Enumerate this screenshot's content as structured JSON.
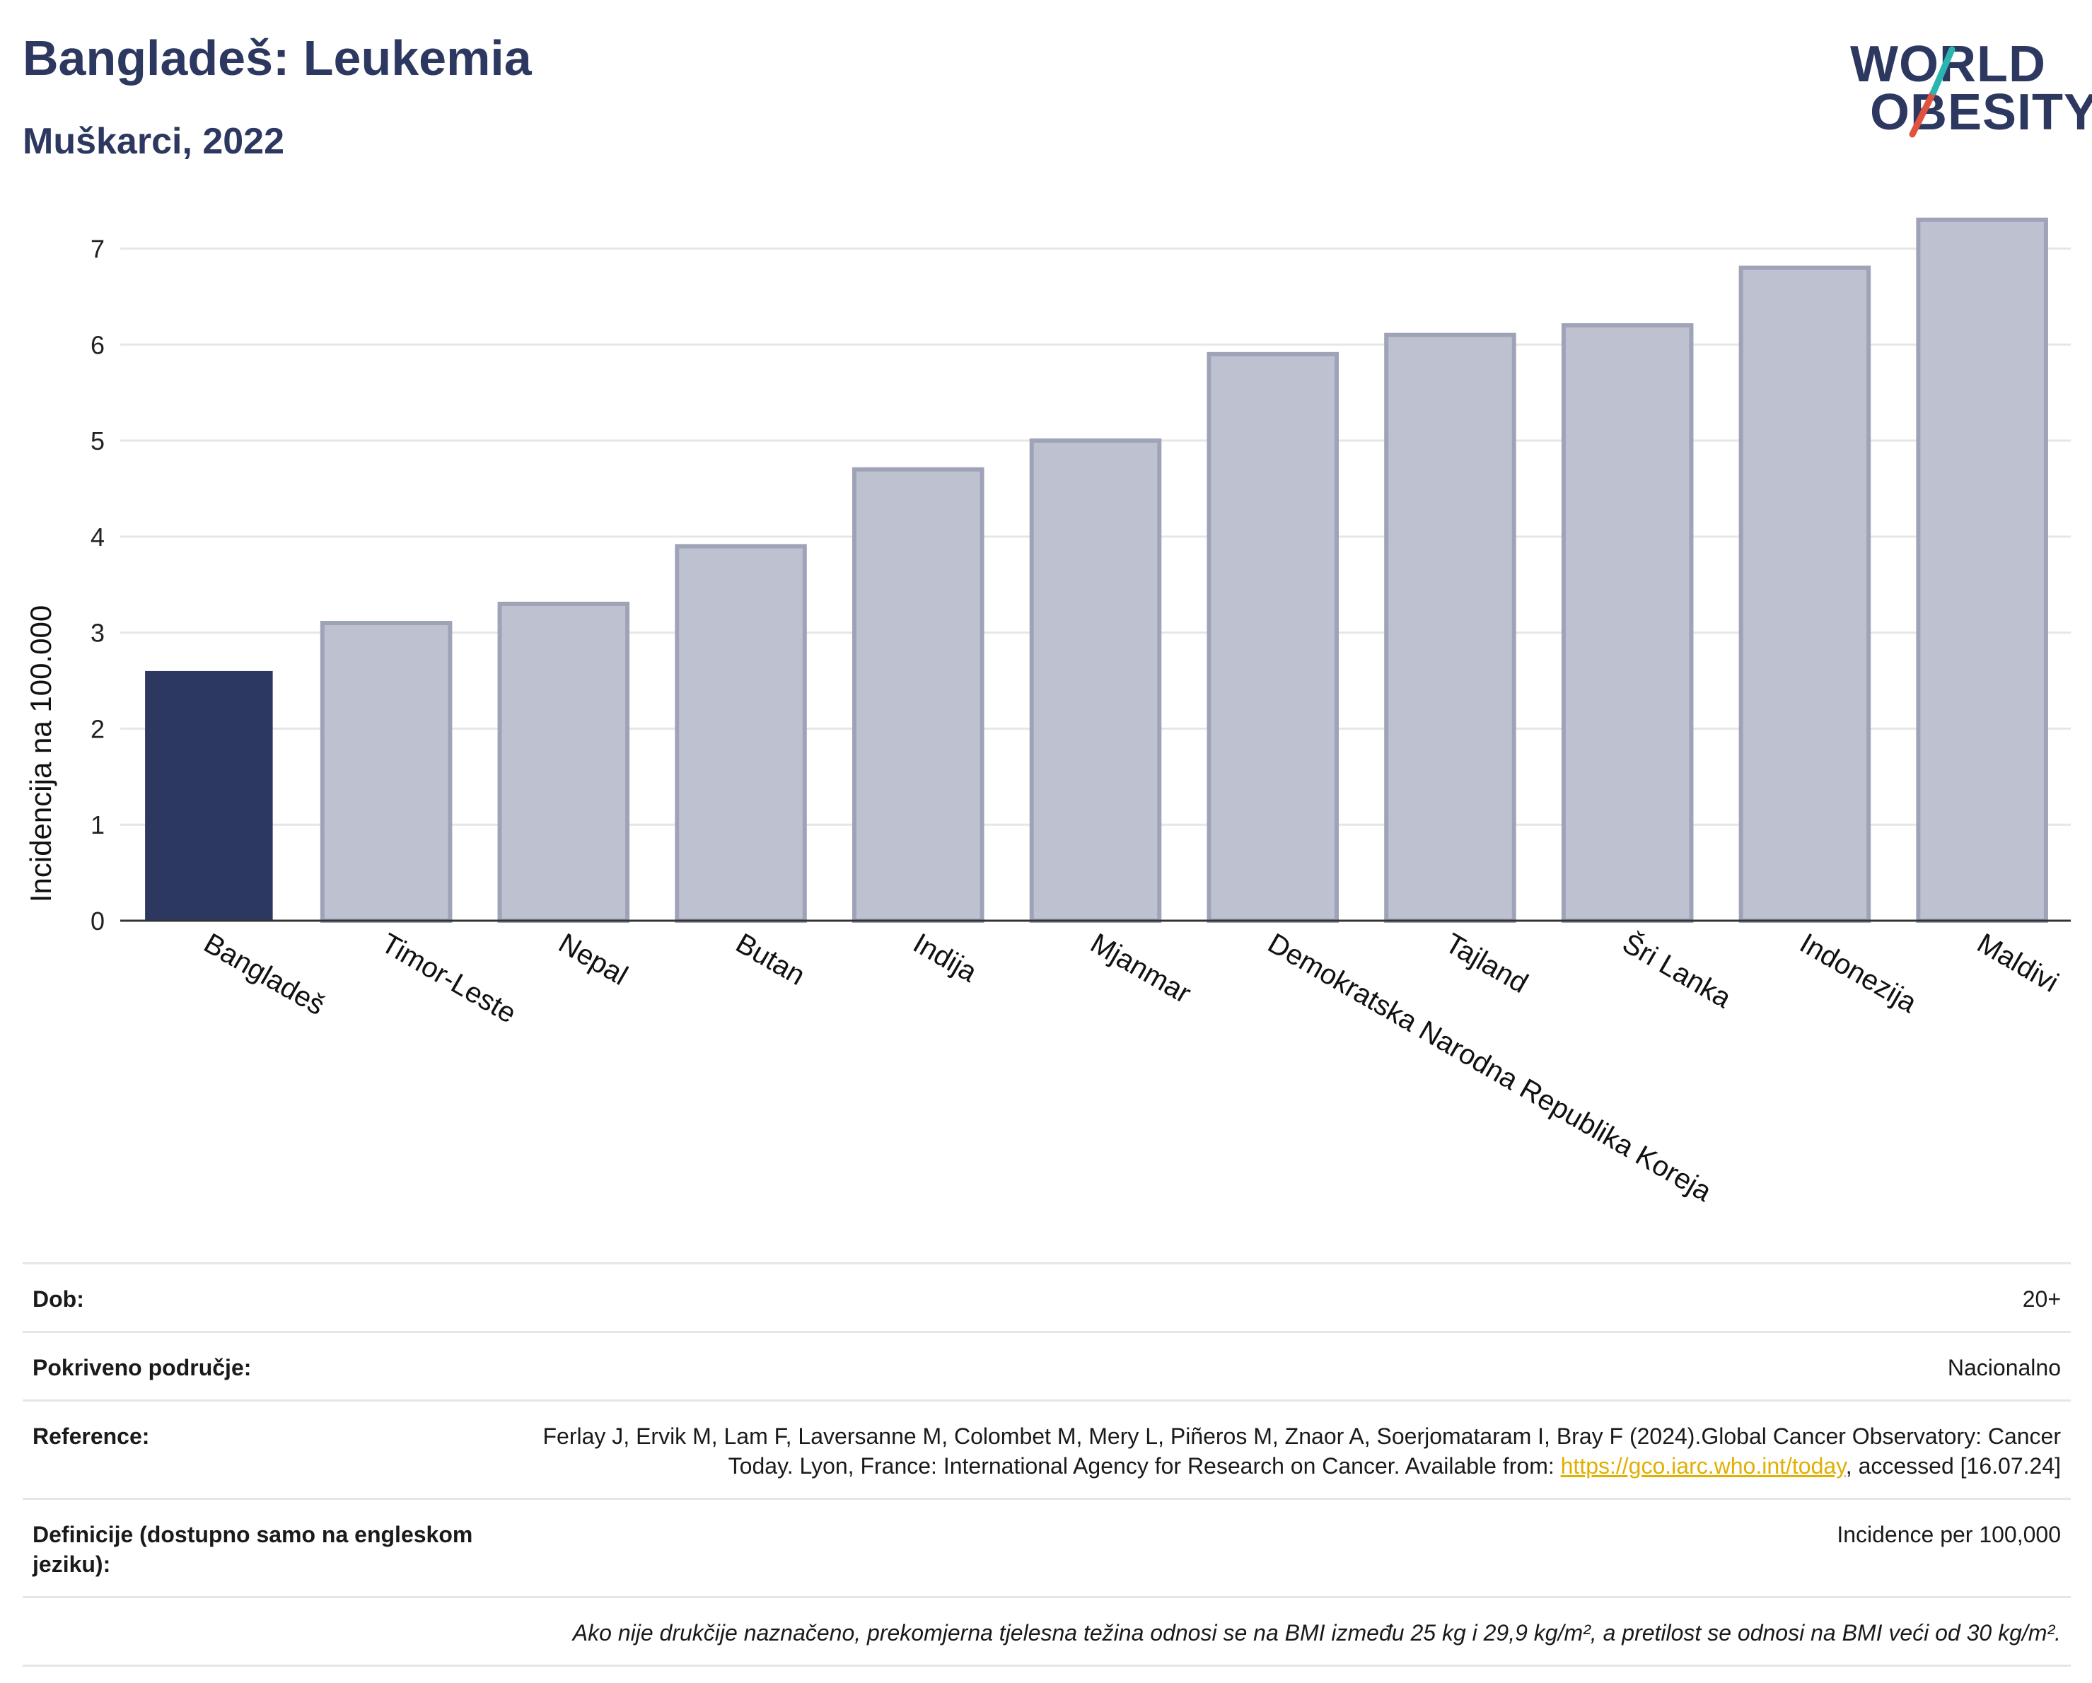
{
  "header": {
    "title": "Bangladeš: Leukemia",
    "subtitle": "Muškarci, 2022"
  },
  "logo": {
    "line1": "WORLD",
    "line2": "OBESITY"
  },
  "colors": {
    "highlight": "#2d3860",
    "bar": "#bec2d0",
    "bar_border": "#9ea3b8",
    "accent_red": "#e0533f",
    "accent_teal": "#2bb5b0",
    "link": "#e0b000"
  },
  "chart_data": {
    "type": "bar",
    "ylabel": "Incidencija na 100.000",
    "xlabel": "",
    "ylim": [
      0,
      7.6
    ],
    "yticks": [
      0,
      1,
      2,
      3,
      4,
      5,
      6,
      7
    ],
    "grid": true,
    "highlight_index": 0,
    "categories": [
      "Bangladeš",
      "Timor-Leste",
      "Nepal",
      "Butan",
      "Indija",
      "Mjanmar",
      "Demokratska Narodna Republika Koreja",
      "Tajland",
      "Šri Lanka",
      "Indonezija",
      "Maldivi"
    ],
    "values": [
      2.6,
      3.1,
      3.3,
      3.9,
      4.7,
      5.0,
      5.9,
      6.1,
      6.2,
      6.8,
      7.3
    ]
  },
  "meta": {
    "age_label": "Dob:",
    "age_value": "20+",
    "coverage_label": "Pokriveno područje:",
    "coverage_value": "Nacionalno",
    "reference_label": "Reference:",
    "reference_text": "Ferlay J, Ervik M, Lam F, Laversanne M, Colombet M, Mery L, Piñeros M, Znaor A, Soerjomataram I, Bray F (2024).Global Cancer Observatory: Cancer Today. Lyon, France: International Agency for Research on Cancer. Available from: ",
    "reference_link": "https://gco.iarc.who.int/today",
    "reference_tail": ", accessed [16.07.24]",
    "definitions_label": "Definicije (dostupno samo na engleskom jeziku):",
    "definitions_value": "Incidence per 100,000",
    "note": "Ako nije drukčije naznačeno, prekomjerna tjelesna težina odnosi se na BMI između 25 kg i 29,9 kg/m², a pretilost se odnosi na BMI veći od 30 kg/m²."
  }
}
